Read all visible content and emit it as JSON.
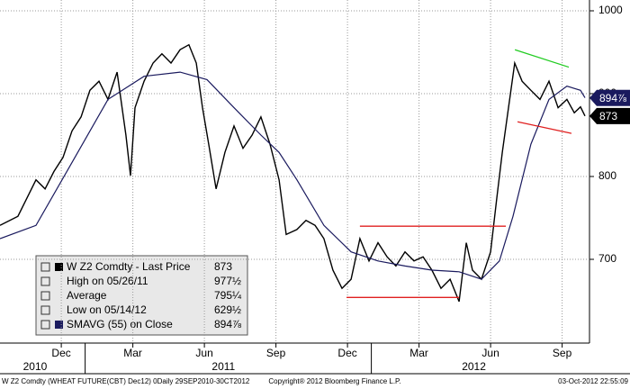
{
  "chart_data": {
    "type": "line",
    "series": [
      {
        "name": "W Z2 Comdty - Last Price",
        "color": "#000000",
        "x": [
          0.43,
          1.18,
          1.94,
          2.32,
          2.69,
          3.07,
          3.45,
          3.83,
          4.2,
          4.58,
          4.96,
          5.34,
          5.71,
          5.9,
          6.09,
          6.47,
          6.85,
          7.22,
          7.6,
          7.98,
          8.35,
          8.66,
          8.92,
          9.18,
          9.49,
          9.86,
          10.24,
          10.62,
          11.0,
          11.37,
          11.75,
          12.13,
          12.43,
          12.88,
          13.26,
          13.64,
          14.01,
          14.39,
          14.77,
          15.15,
          15.52,
          15.9,
          16.28,
          16.66,
          17.03,
          17.41,
          17.79,
          18.17,
          18.54,
          18.92,
          19.3,
          19.68,
          19.98,
          20.24,
          20.62,
          21.0,
          21.26,
          21.49,
          21.75,
          22.01,
          22.32,
          22.69,
          23.07,
          23.45,
          23.83,
          24.2,
          24.51,
          24.77,
          24.96
        ],
        "values": [
          741,
          752,
          796,
          785,
          806,
          823,
          855,
          872,
          904,
          915,
          893,
          926,
          850,
          801,
          883,
          915,
          937,
          948,
          937,
          953,
          959,
          937,
          883,
          839,
          785,
          829,
          861,
          834,
          850,
          872,
          839,
          796,
          730,
          736,
          747,
          741,
          725,
          687,
          665,
          676,
          725,
          698,
          720,
          703,
          692,
          709,
          698,
          703,
          687,
          665,
          676,
          649,
          720,
          687,
          676,
          709,
          774,
          829,
          883,
          937,
          915,
          904,
          893,
          915,
          883,
          893,
          877,
          884,
          873
        ]
      },
      {
        "name": "SMAVG (55) on Close",
        "color": "#1a1a5e",
        "x": [
          0.43,
          1.94,
          3.45,
          4.96,
          6.47,
          7.98,
          9.11,
          10.24,
          11.37,
          12.13,
          12.88,
          14.01,
          15.15,
          16.28,
          17.41,
          18.54,
          19.68,
          20.62,
          21.37,
          21.94,
          22.69,
          23.45,
          24.2,
          24.77,
          24.96
        ],
        "values": [
          725,
          741,
          817,
          893,
          921,
          926,
          917,
          883,
          850,
          829,
          796,
          741,
          709,
          698,
          692,
          687,
          685,
          676,
          698,
          752,
          839,
          893,
          909,
          904,
          895
        ]
      }
    ],
    "trendlines": [
      {
        "color": "#e02020",
        "x": [
          15.52,
          21.64
        ],
        "values": [
          740,
          740
        ]
      },
      {
        "color": "#e02020",
        "x": [
          14.96,
          19.68
        ],
        "values": [
          654,
          654
        ]
      },
      {
        "color": "#e02020",
        "x": [
          22.13,
          24.39
        ],
        "values": [
          866,
          852
        ]
      },
      {
        "color": "#22cc22",
        "x": [
          22.02,
          24.28
        ],
        "values": [
          953,
          932
        ]
      }
    ],
    "last_labels": [
      {
        "value": 894.875,
        "label": "894⅞",
        "color": "#1a1a5e"
      },
      {
        "value": 873,
        "label": "873",
        "color": "#000000"
      }
    ],
    "ylim": [
      600,
      1000
    ],
    "yticks": [
      700,
      800,
      900,
      1000
    ],
    "xlim": [
      0.43,
      25.15
    ],
    "xticks": [
      {
        "value": 3,
        "label": "Dec"
      },
      {
        "value": 6,
        "label": "Mar"
      },
      {
        "value": 9,
        "label": "Jun"
      },
      {
        "value": 12,
        "label": "Sep"
      },
      {
        "value": 15,
        "label": "Dec"
      },
      {
        "value": 18,
        "label": "Mar"
      },
      {
        "value": 21,
        "label": "Jun"
      },
      {
        "value": 24,
        "label": "Sep"
      }
    ],
    "year_ticks": [
      4,
      16
    ],
    "year_labels": [
      {
        "value": 1.9,
        "label": "2010"
      },
      {
        "value": 9.8,
        "label": "2011"
      },
      {
        "value": 20.3,
        "label": "2012"
      }
    ],
    "grid": true,
    "legend": {
      "rows": [
        {
          "label": "W Z2 Comdty - Last Price",
          "value_label": "873"
        },
        {
          "label": "High on 05/26/11",
          "value_label": "977½"
        },
        {
          "label": "Average",
          "value_label": "795¼"
        },
        {
          "label": "Low on 05/14/12",
          "value_label": "629½"
        },
        {
          "label": "SMAVG (55) on Close",
          "value_label": "894⅞"
        }
      ]
    },
    "footer": {
      "left": "W Z2 Comdty (WHEAT FUTURE(CBT) Dec12) 0Daily 29SEP2010-30CT2012",
      "center": "Copyright® 2012 Bloomberg Finance L.P.",
      "right": "03-Oct-2012 22:55:09"
    }
  }
}
